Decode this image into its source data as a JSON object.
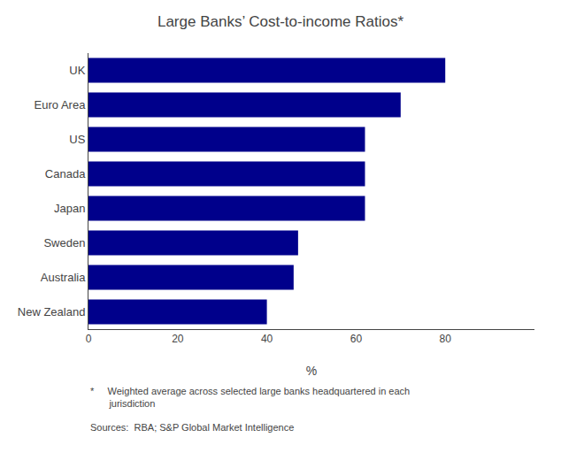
{
  "chart_data": {
    "type": "bar",
    "orientation": "horizontal",
    "title": "Large Banks’ Cost-to-income Ratios*",
    "categories": [
      "UK",
      "Euro Area",
      "US",
      "Canada",
      "Japan",
      "Sweden",
      "Australia",
      "New Zealand"
    ],
    "values": [
      80,
      70,
      62,
      62,
      62,
      47,
      46,
      40
    ],
    "color": "#00008B",
    "xlim": [
      0,
      100
    ],
    "xticks": [
      0,
      20,
      40,
      60,
      80
    ],
    "xlabel": "%",
    "grid": false,
    "annotations": [
      "*     Weighted average across selected large banks headquartered in each\n       jurisdiction",
      "Sources:  RBA; S&P Global Market Intelligence"
    ]
  }
}
